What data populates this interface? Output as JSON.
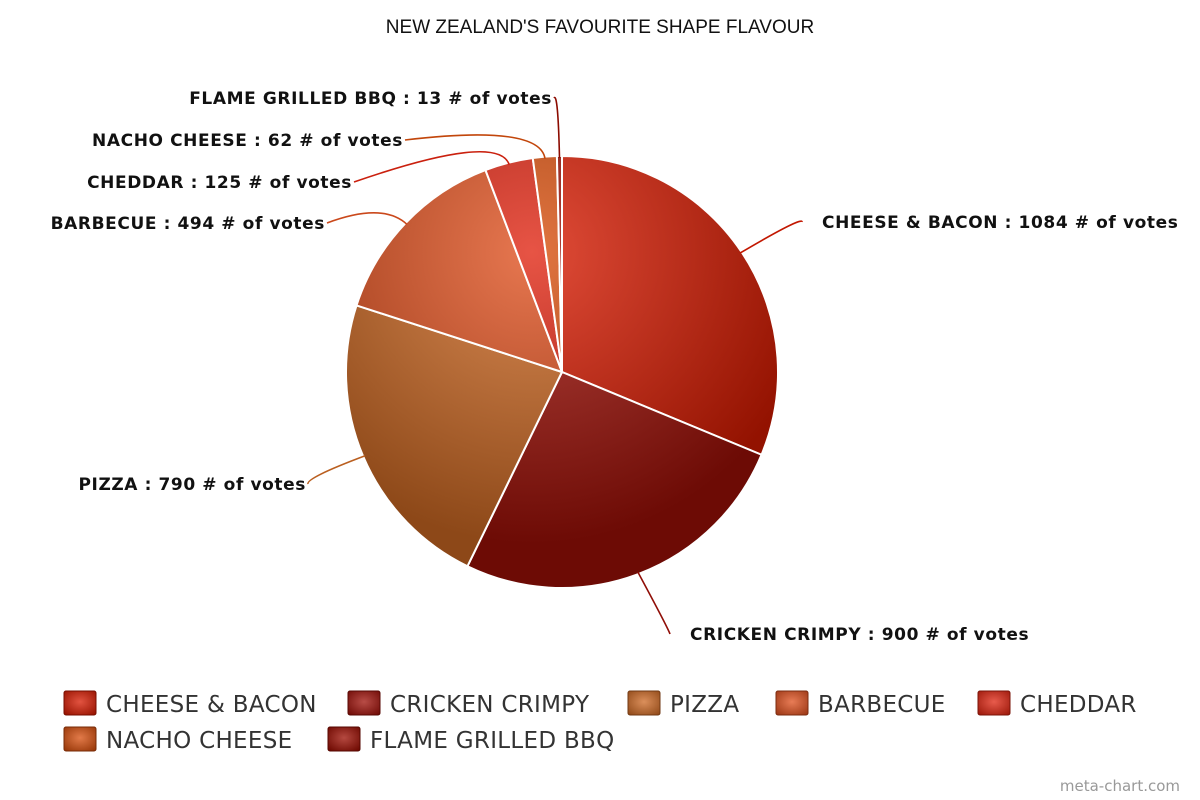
{
  "chart_data": {
    "type": "pie",
    "title": "NEW ZEALAND'S FAVOURITE SHAPE FLAVOUR",
    "unit": "# of votes",
    "slices": [
      {
        "label": "CHEESE & BACON",
        "value": 1084,
        "color": "#d81a00"
      },
      {
        "label": "CRICKEN CRIMPY",
        "value": 900,
        "color": "#a01008"
      },
      {
        "label": "PIZZA",
        "value": 790,
        "color": "#cf6a24"
      },
      {
        "label": "BARBECUE",
        "value": 494,
        "color": "#e0501e"
      },
      {
        "label": "CHEDDAR",
        "value": 125,
        "color": "#e02410"
      },
      {
        "label": "NACHO CHEESE",
        "value": 62,
        "color": "#d84e0c"
      },
      {
        "label": "FLAME GRILLED BBQ",
        "value": 13,
        "color": "#9c0c00"
      }
    ],
    "legend_position": "bottom"
  },
  "footer": {
    "credit": "meta-chart.com"
  }
}
